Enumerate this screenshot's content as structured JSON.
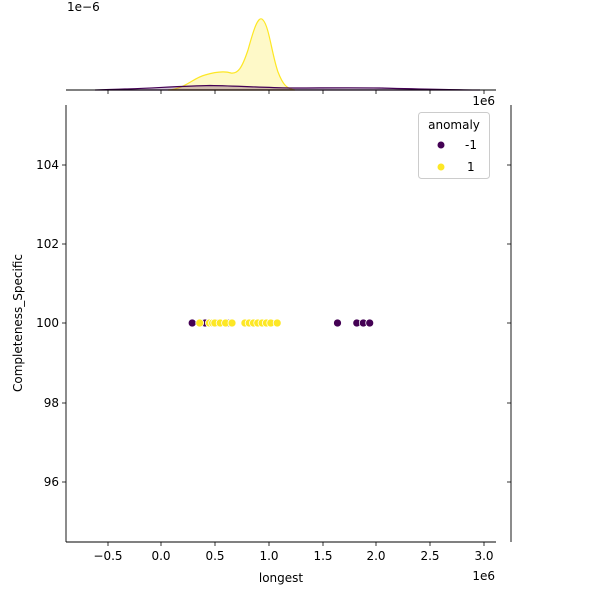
{
  "chart_data": {
    "type": "scatter",
    "kind": "jointplot",
    "title": "",
    "xlabel": "longest",
    "ylabel": "Completeness_Specific",
    "x_offset_text": "1e6",
    "top_marginal_offset_text": "1e−6",
    "top_marginal_x_offset_text": "1e6",
    "xlim": [
      -0.9,
      3.1
    ],
    "ylim": [
      94.5,
      105.5
    ],
    "x_ticks": [
      -0.5,
      0.0,
      0.5,
      1.0,
      1.5,
      2.0,
      2.5,
      3.0
    ],
    "x_tick_labels": [
      "−0.5",
      "0.0",
      "0.5",
      "1.0",
      "1.5",
      "2.0",
      "2.5",
      "3.0"
    ],
    "y_ticks": [
      104,
      102,
      100,
      98,
      96
    ],
    "y_tick_labels": [
      "104",
      "102",
      "100",
      "98",
      "96"
    ],
    "grid": false,
    "legend": {
      "title": "anomaly",
      "position": "upper right",
      "entries": [
        {
          "label": "-1",
          "color": "#440154"
        },
        {
          "label": "1",
          "color": "#fde725"
        }
      ]
    },
    "series": [
      {
        "name": "-1",
        "color": "#440154",
        "x": [
          0.29,
          0.39,
          0.41,
          0.52,
          0.62,
          1.64,
          1.82,
          1.88,
          1.94
        ],
        "y": [
          100,
          100,
          100,
          100,
          100,
          100,
          100,
          100,
          100
        ]
      },
      {
        "name": "1",
        "color": "#fde725",
        "x": [
          0.36,
          0.45,
          0.48,
          0.5,
          0.55,
          0.6,
          0.66,
          0.78,
          0.82,
          0.86,
          0.9,
          0.94,
          0.98,
          1.02,
          1.08
        ],
        "y": [
          100,
          100,
          100,
          100,
          100,
          100,
          100,
          100,
          100,
          100,
          100,
          100,
          100,
          100,
          100
        ]
      }
    ],
    "top_marginal": {
      "type": "kde",
      "series": [
        {
          "name": "1",
          "color": "#fde725",
          "x": [
            -0.5,
            0.2,
            0.4,
            0.5,
            0.6,
            0.7,
            0.8,
            0.9,
            0.95,
            1.0,
            1.1,
            1.2,
            1.5,
            3.0
          ],
          "density": [
            0,
            0.0,
            0.05,
            0.1,
            0.14,
            0.15,
            0.3,
            0.95,
            0.88,
            0.65,
            0.1,
            0.0,
            0,
            0
          ]
        },
        {
          "name": "-1",
          "color": "#440154",
          "x": [
            -0.5,
            0.0,
            0.5,
            1.0,
            1.5,
            2.0,
            2.5,
            3.0
          ],
          "density": [
            0,
            0.01,
            0.04,
            0.025,
            0.015,
            0.02,
            0.01,
            0
          ]
        }
      ]
    },
    "right_marginal": {
      "type": "kde",
      "note": "degenerate (all values = 100)"
    }
  }
}
